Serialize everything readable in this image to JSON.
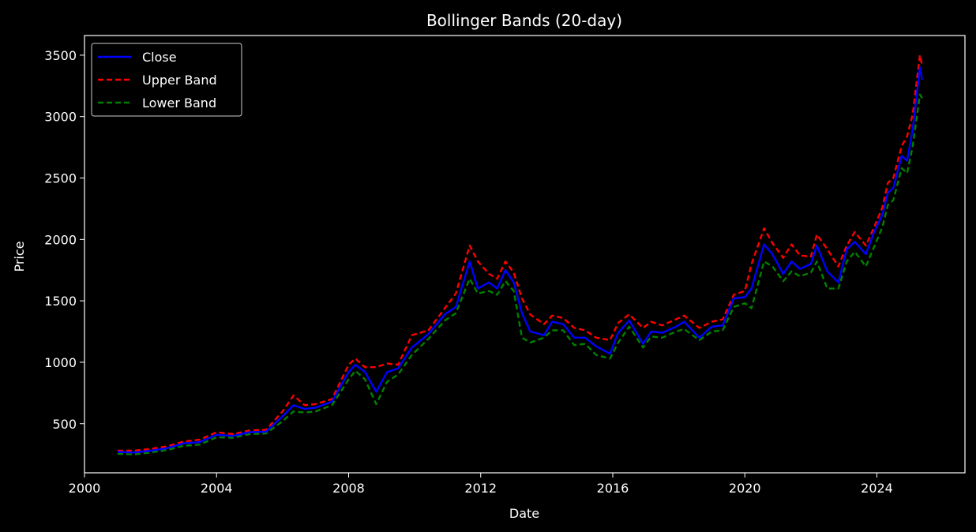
{
  "chart_data": {
    "type": "line",
    "title": "Bollinger Bands (20-day)",
    "xlabel": "Date",
    "ylabel": "Price",
    "xlim": [
      "2000-01-01",
      "2026-09-01"
    ],
    "ylim": [
      100,
      3660
    ],
    "x_ticks": [
      "2000",
      "2004",
      "2008",
      "2012",
      "2016",
      "2020",
      "2024"
    ],
    "y_ticks": [
      "500",
      "1000",
      "1500",
      "2000",
      "2500",
      "3000",
      "3500"
    ],
    "grid": false,
    "legend_position": "top-left",
    "background": "#000000",
    "foreground": "#ffffff",
    "x": [
      "2001-01-01",
      "2001-07-01",
      "2002-01-01",
      "2002-07-01",
      "2003-01-01",
      "2003-07-01",
      "2004-01-01",
      "2004-07-01",
      "2005-01-01",
      "2005-07-01",
      "2006-01-01",
      "2006-05-01",
      "2006-09-01",
      "2007-01-01",
      "2007-07-01",
      "2008-01-01",
      "2008-03-15",
      "2008-07-01",
      "2008-11-01",
      "2009-03-01",
      "2009-07-01",
      "2009-12-01",
      "2010-06-01",
      "2010-12-01",
      "2011-04-01",
      "2011-09-01",
      "2011-12-01",
      "2012-04-01",
      "2012-07-01",
      "2012-10-01",
      "2013-01-01",
      "2013-04-01",
      "2013-07-01",
      "2013-12-01",
      "2014-03-01",
      "2014-07-01",
      "2014-11-01",
      "2015-03-01",
      "2015-07-01",
      "2015-12-01",
      "2016-03-01",
      "2016-07-01",
      "2016-12-01",
      "2017-03-01",
      "2017-07-01",
      "2017-12-01",
      "2018-03-01",
      "2018-08-15",
      "2019-01-01",
      "2019-05-01",
      "2019-09-01",
      "2020-01-01",
      "2020-03-15",
      "2020-08-01",
      "2020-11-01",
      "2021-03-01",
      "2021-06-01",
      "2021-09-01",
      "2022-01-01",
      "2022-03-08",
      "2022-07-01",
      "2022-11-01",
      "2023-02-01",
      "2023-05-01",
      "2023-09-01",
      "2023-12-01",
      "2024-03-01",
      "2024-05-01",
      "2024-07-01",
      "2024-10-01",
      "2024-12-01",
      "2025-02-01",
      "2025-04-21",
      "2025-05-15"
    ],
    "series": [
      {
        "name": "Close",
        "color": "#0000ff",
        "style": "solid",
        "values": [
          270,
          265,
          280,
          300,
          340,
          350,
          410,
          400,
          430,
          435,
          560,
          650,
          620,
          630,
          680,
          920,
          980,
          920,
          760,
          920,
          950,
          1120,
          1230,
          1390,
          1450,
          1820,
          1600,
          1650,
          1600,
          1750,
          1650,
          1400,
          1250,
          1220,
          1330,
          1310,
          1200,
          1200,
          1130,
          1070,
          1240,
          1340,
          1150,
          1250,
          1240,
          1290,
          1330,
          1200,
          1290,
          1300,
          1520,
          1530,
          1600,
          1960,
          1880,
          1720,
          1820,
          1760,
          1800,
          1950,
          1740,
          1650,
          1920,
          1980,
          1880,
          2060,
          2200,
          2380,
          2420,
          2680,
          2640,
          2900,
          3400,
          3300
        ]
      },
      {
        "name": "Upper Band",
        "color": "#ff0000",
        "style": "dashed",
        "values": [
          280,
          280,
          295,
          315,
          355,
          370,
          430,
          415,
          445,
          450,
          600,
          730,
          650,
          660,
          700,
          980,
          1030,
          960,
          960,
          990,
          980,
          1220,
          1260,
          1440,
          1560,
          1950,
          1820,
          1720,
          1680,
          1820,
          1730,
          1520,
          1390,
          1310,
          1380,
          1360,
          1280,
          1260,
          1200,
          1180,
          1320,
          1390,
          1280,
          1330,
          1300,
          1350,
          1380,
          1280,
          1330,
          1350,
          1550,
          1580,
          1800,
          2090,
          1970,
          1850,
          1960,
          1870,
          1860,
          2040,
          1920,
          1780,
          1950,
          2060,
          1950,
          2100,
          2260,
          2460,
          2500,
          2760,
          2840,
          3020,
          3500,
          3420
        ]
      },
      {
        "name": "Lower Band",
        "color": "#008000",
        "style": "dashed",
        "values": [
          255,
          250,
          265,
          285,
          320,
          330,
          390,
          385,
          415,
          420,
          520,
          600,
          590,
          600,
          650,
          860,
          930,
          860,
          660,
          840,
          900,
          1060,
          1190,
          1340,
          1400,
          1680,
          1560,
          1580,
          1550,
          1660,
          1580,
          1200,
          1160,
          1200,
          1260,
          1260,
          1140,
          1150,
          1060,
          1030,
          1160,
          1290,
          1120,
          1210,
          1200,
          1250,
          1270,
          1180,
          1250,
          1260,
          1450,
          1480,
          1440,
          1820,
          1780,
          1660,
          1740,
          1700,
          1730,
          1820,
          1600,
          1600,
          1820,
          1900,
          1780,
          1940,
          2100,
          2280,
          2320,
          2580,
          2540,
          2760,
          3180,
          3150
        ]
      }
    ]
  }
}
